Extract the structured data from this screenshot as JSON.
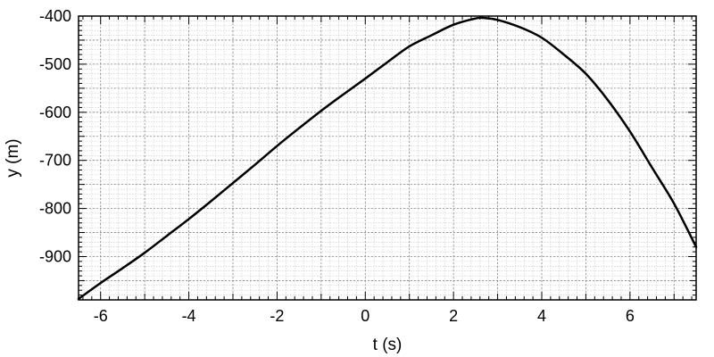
{
  "chart_data": {
    "type": "line",
    "xlabel": "t (s)",
    "ylabel": "y (m)",
    "xlim": [
      -6.5,
      7.5
    ],
    "ylim": [
      -990,
      -400
    ],
    "xticks": [
      -6,
      -4,
      -2,
      0,
      2,
      4,
      6
    ],
    "yticks": [
      -400,
      -500,
      -600,
      -700,
      -800,
      -900
    ],
    "xtick_labels": [
      "-6",
      "-4",
      "-2",
      "0",
      "2",
      "4",
      "6"
    ],
    "ytick_labels": [
      "-400",
      "-500",
      "-600",
      "-700",
      "-800",
      "-900"
    ],
    "grid": true,
    "series": [
      {
        "color": "#000000",
        "x": [
          -6.5,
          -6,
          -5.5,
          -5,
          -4.5,
          -4,
          -3.5,
          -3,
          -2.5,
          -2,
          -1.5,
          -1,
          -0.5,
          0,
          0.5,
          1,
          1.5,
          2,
          2.5,
          2.7,
          3,
          3.5,
          4,
          4.5,
          5,
          5.5,
          6,
          6.5,
          7,
          7.5
        ],
        "y": [
          -988,
          -955,
          -924,
          -892,
          -857,
          -822,
          -785,
          -747,
          -709,
          -670,
          -633,
          -597,
          -563,
          -530,
          -496,
          -463,
          -440,
          -418,
          -405,
          -404,
          -408,
          -423,
          -445,
          -480,
          -520,
          -575,
          -640,
          -715,
          -790,
          -880
        ]
      }
    ]
  }
}
